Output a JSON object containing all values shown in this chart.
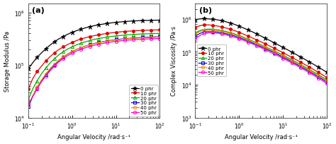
{
  "title_a": "(a)",
  "title_b": "(b)",
  "xlabel": "Angular Velocity /rad·s⁻¹",
  "ylabel_a": "Storage Modulus /Pa",
  "ylabel_b": "Complex Viscosity /Pa·s",
  "xlim": [
    0.1,
    100
  ],
  "ylim_a": [
    10000.0,
    1500000.0
  ],
  "ylim_b": [
    1000.0,
    3000000.0
  ],
  "series": [
    {
      "label": "0 phr",
      "color": "#000000",
      "marker": "*",
      "mfc": "black",
      "mew": 0.5
    },
    {
      "label": "10 phr",
      "color": "#e00000",
      "marker": "o",
      "mfc": "#e00000",
      "mew": 0.5
    },
    {
      "label": "20 phr",
      "color": "#00aa00",
      "marker": "^",
      "mfc": "none",
      "mew": 0.7
    },
    {
      "label": "30 phr",
      "color": "#0000dd",
      "marker": "s",
      "mfc": "none",
      "mew": 0.7
    },
    {
      "label": "40 phr",
      "color": "#ff8800",
      "marker": "o",
      "mfc": "none",
      "mew": 0.7
    },
    {
      "label": "50 phr",
      "color": "#ff00cc",
      "marker": "o",
      "mfc": "none",
      "mew": 0.7
    }
  ],
  "omega": [
    0.1,
    0.126,
    0.158,
    0.2,
    0.251,
    0.316,
    0.398,
    0.501,
    0.631,
    0.794,
    1.0,
    1.259,
    1.585,
    1.995,
    2.512,
    3.162,
    3.981,
    5.012,
    6.31,
    7.943,
    10.0,
    12.59,
    15.85,
    19.95,
    25.12,
    31.62,
    39.81,
    50.12,
    63.1,
    79.43,
    100.0
  ],
  "storage_modulus": [
    [
      85000.0,
      110000.0,
      140000.0,
      170000.0,
      205000.0,
      240000.0,
      280000.0,
      315000.0,
      350000.0,
      385000.0,
      420000.0,
      450000.0,
      480000.0,
      510000.0,
      535000.0,
      560000.0,
      582000.0,
      600000.0,
      618000.0,
      635000.0,
      650000.0,
      662000.0,
      672000.0,
      682000.0,
      690000.0,
      697000.0,
      702000.0,
      706000.0,
      710000.0,
      713000.0,
      715000.0
    ],
    [
      35000.0,
      55000.0,
      75000.0,
      95000.0,
      120000.0,
      145000.0,
      172000.0,
      198000.0,
      222000.0,
      246000.0,
      270000.0,
      292000.0,
      312000.0,
      330000.0,
      347000.0,
      362000.0,
      376000.0,
      388000.0,
      400000.0,
      410000.0,
      420000.0,
      428000.0,
      436000.0,
      442000.0,
      448000.0,
      453000.0,
      457000.0,
      460000.0,
      463000.0,
      465000.0,
      467000.0
    ],
    [
      22000.0,
      35000.0,
      50000.0,
      68000.0,
      88000.0,
      110000.0,
      133000.0,
      157000.0,
      180000.0,
      202000.0,
      222000.0,
      242000.0,
      260000.0,
      277000.0,
      292000.0,
      307000.0,
      319000.0,
      330000.0,
      341000.0,
      350000.0,
      358000.0,
      365000.0,
      372000.0,
      377000.0,
      382000.0,
      386000.0,
      390000.0,
      393000.0,
      396000.0,
      398000.0,
      400000.0
    ],
    [
      16000.0,
      25000.0,
      36000.0,
      50000.0,
      65000.0,
      83000.0,
      102000.0,
      122000.0,
      142000.0,
      162000.0,
      180000.0,
      198000.0,
      214000.0,
      229000.0,
      243000.0,
      256000.0,
      268000.0,
      278000.0,
      288000.0,
      296000.0,
      304000.0,
      311000.0,
      317000.0,
      322000.0,
      327000.0,
      331000.0,
      335000.0,
      338000.0,
      341000.0,
      343000.0,
      345000.0
    ],
    [
      17000.0,
      26000.0,
      38000.0,
      52000.0,
      68000.0,
      86000.0,
      105000.0,
      125000.0,
      144000.0,
      163000.0,
      181000.0,
      198000.0,
      214000.0,
      229000.0,
      242000.0,
      255000.0,
      266000.0,
      276000.0,
      285000.0,
      293000.0,
      301000.0,
      307000.0,
      313000.0,
      318000.0,
      322000.0,
      326000.0,
      330000.0,
      333000.0,
      335000.0,
      337000.0,
      339000.0
    ],
    [
      18000.0,
      25000.0,
      35000.0,
      48000.0,
      62000.0,
      78000.0,
      96000.0,
      115000.0,
      133000.0,
      151000.0,
      168000.0,
      184000.0,
      199000.0,
      213000.0,
      226000.0,
      238000.0,
      249000.0,
      258000.0,
      267000.0,
      275000.0,
      282000.0,
      288000.0,
      294000.0,
      299000.0,
      303000.0,
      307000.0,
      310000.0,
      313000.0,
      316000.0,
      318000.0,
      320000.0
    ]
  ],
  "complex_viscosity": [
    [
      950000.0,
      1000000.0,
      1020000.0,
      1000000.0,
      980000.0,
      940000.0,
      880000.0,
      820000.0,
      750000.0,
      680000.0,
      600000.0,
      530000.0,
      465000.0,
      405000.0,
      350000.0,
      300000.0,
      258000.0,
      220000.0,
      188000.0,
      160000.0,
      136000.0,
      116000.0,
      98000.0,
      83000.0,
      70000.0,
      59000.0,
      49500.0,
      41500.0,
      34500.0,
      28800.0,
      24000.0
    ],
    [
      550000.0,
      620000.0,
      660000.0,
      660000.0,
      640000.0,
      610000.0,
      570000.0,
      530000.0,
      485000.0,
      440000.0,
      390000.0,
      345000.0,
      302000.0,
      264000.0,
      230000.0,
      200000.0,
      173000.0,
      149000.0,
      128000.0,
      110000.0,
      94000.0,
      80000.0,
      68000.0,
      57500.0,
      48500.0,
      41000.0,
      34400.0,
      28800.0,
      24000.0,
      20000.0,
      16700.0
    ],
    [
      380000.0,
      440000.0,
      480000.0,
      490000.0,
      485000.0,
      470000.0,
      445000.0,
      415000.0,
      382000.0,
      348000.0,
      312000.0,
      277000.0,
      244000.0,
      214000.0,
      187000.0,
      163000.0,
      142000.0,
      123000.0,
      107000.0,
      92000.0,
      79000.0,
      67500.0,
      57500.0,
      48800.0,
      41200.0,
      34700.0,
      29100.0,
      24400.0,
      20400.0,
      17000.0,
      14100.0
    ],
    [
      300000.0,
      360000.0,
      400000.0,
      410000.0,
      410000.0,
      400000.0,
      380000.0,
      356000.0,
      330000.0,
      302000.0,
      272000.0,
      243000.0,
      215000.0,
      188000.0,
      165000.0,
      144000.0,
      125000.0,
      109000.0,
      94000.0,
      81000.0,
      69000.0,
      59000.0,
      50000.0,
      42500.0,
      36000.0,
      30300.0,
      25300.0,
      21200.0,
      17600.0,
      14600.0,
      12100.0
    ],
    [
      350000.0,
      410000.0,
      450000.0,
      460000.0,
      455000.0,
      440000.0,
      418000.0,
      390000.0,
      360000.0,
      329000.0,
      296000.0,
      264000.0,
      233000.0,
      205000.0,
      179000.0,
      156000.0,
      136000.0,
      118000.0,
      102000.0,
      88000.0,
      75000.0,
      64000.0,
      54400.0,
      46000.0,
      38800.0,
      32700.0,
      27400.0,
      22800.0,
      19000.0,
      15700.0,
      12900.0
    ],
    [
      250000.0,
      310000.0,
      360000.0,
      375000.0,
      378000.0,
      368000.0,
      350000.0,
      328000.0,
      303000.0,
      277000.0,
      250000.0,
      223000.0,
      197000.0,
      174000.0,
      152000.0,
      133000.0,
      115000.0,
      99000.0,
      86000.0,
      74000.0,
      63500.0,
      54000.0,
      46000.0,
      39000.0,
      33000.0,
      27700.0,
      23200.0,
      19300.0,
      16000.0,
      13200.0,
      10900.0
    ]
  ],
  "legend_a_loc": "lower right",
  "legend_b_loc": "center left",
  "background_color": "#ffffff",
  "marker_size": 3.0,
  "star_size": 4.5,
  "linewidth": 0.9
}
